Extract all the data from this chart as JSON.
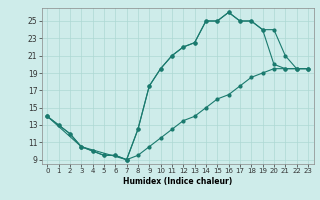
{
  "xlabel": "Humidex (Indice chaleur)",
  "bg_color": "#ceecea",
  "grid_color": "#add8d4",
  "line_color": "#1a7a6e",
  "xlim": [
    -0.5,
    23.5
  ],
  "ylim": [
    8.5,
    26.5
  ],
  "xticks": [
    0,
    1,
    2,
    3,
    4,
    5,
    6,
    7,
    8,
    9,
    10,
    11,
    12,
    13,
    14,
    15,
    16,
    17,
    18,
    19,
    20,
    21,
    22,
    23
  ],
  "yticks": [
    9,
    11,
    13,
    15,
    17,
    19,
    21,
    23,
    25
  ],
  "line1_x": [
    0,
    1,
    2,
    3,
    4,
    5,
    6,
    7,
    8,
    9,
    10,
    11,
    12,
    13,
    14,
    15,
    16,
    17,
    18,
    19,
    20,
    21,
    22,
    23
  ],
  "line1_y": [
    14,
    13,
    12,
    10.5,
    10,
    9.5,
    9.5,
    9,
    12.5,
    17.5,
    19.5,
    21,
    22,
    22.5,
    25,
    25,
    26,
    25,
    25,
    24,
    20,
    19.5,
    19.5,
    19.5
  ],
  "line2_x": [
    0,
    3,
    7,
    8,
    9,
    10,
    11,
    12,
    13,
    14,
    15,
    16,
    17,
    18,
    19,
    20,
    21,
    22,
    23
  ],
  "line2_y": [
    14,
    10.5,
    9,
    12.5,
    17.5,
    19.5,
    21,
    22,
    22.5,
    25,
    25,
    26,
    25,
    25,
    24,
    24,
    21,
    19.5,
    19.5
  ],
  "line3_x": [
    0,
    1,
    2,
    3,
    4,
    5,
    6,
    7,
    8,
    9,
    10,
    11,
    12,
    13,
    14,
    15,
    16,
    17,
    18,
    19,
    20,
    21,
    22,
    23
  ],
  "line3_y": [
    14,
    13,
    12,
    10.5,
    10,
    9.5,
    9.5,
    9,
    9.5,
    10.5,
    11.5,
    12.5,
    13.5,
    14,
    15,
    16,
    16.5,
    17.5,
    18.5,
    19,
    19.5,
    19.5,
    19.5,
    19.5
  ]
}
